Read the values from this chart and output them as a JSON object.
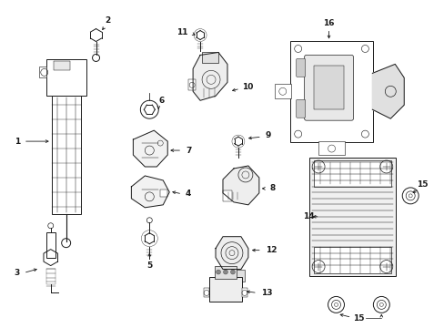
{
  "background_color": "#ffffff",
  "line_color": "#1a1a1a",
  "fig_width": 4.89,
  "fig_height": 3.6,
  "dpi": 100,
  "label_fontsize": 6.5,
  "lw": 0.7
}
